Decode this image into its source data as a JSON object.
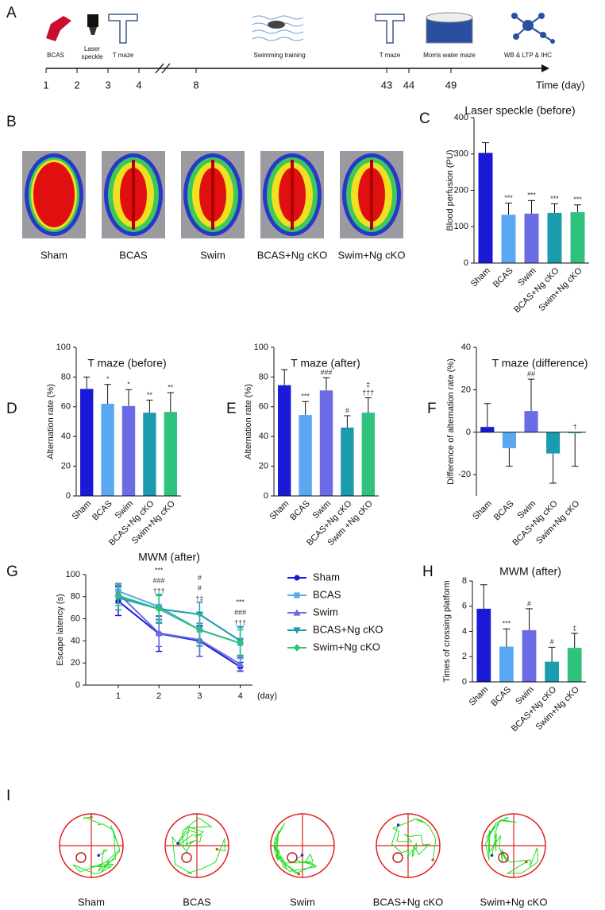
{
  "timeline": {
    "panel": "A",
    "events": [
      {
        "label": "BCAS"
      },
      {
        "label": [
          "Laser",
          "speckle"
        ]
      },
      {
        "label": "T maze"
      },
      {
        "label": "Swimming training"
      },
      {
        "label": "T maze"
      },
      {
        "label": "Morris water maze"
      },
      {
        "label": "WB & LTP & IHC"
      }
    ],
    "days": [
      1,
      2,
      3,
      4,
      8,
      43,
      44,
      49
    ],
    "axis_label": "Time (day)"
  },
  "images": {
    "panel": "B",
    "labels": [
      "Sham",
      "BCAS",
      "Swim",
      "BCAS+Ng cKO",
      "Swim+Ng cKO"
    ]
  },
  "chart_data": [
    {
      "type": "bar",
      "panel": "C",
      "title": "Laser speckle (before)",
      "ylabel": "Blood perfusion (PU)",
      "categories": [
        "Sham",
        "BCAS",
        "Swim",
        "BCAS+Ng cKO",
        "Swim+Ng cKO"
      ],
      "values": [
        303,
        133,
        136,
        138,
        140
      ],
      "errors": [
        28,
        32,
        36,
        25,
        20
      ],
      "colors": [
        "#1a1ad6",
        "#5aa8f2",
        "#6b6be6",
        "#1a9bae",
        "#2fc27c"
      ],
      "annotations": [
        null,
        [
          "***"
        ],
        [
          "***"
        ],
        [
          "***"
        ],
        [
          "***"
        ]
      ],
      "ylim": [
        0,
        400
      ],
      "yticks": [
        0,
        100,
        200,
        300,
        400
      ]
    },
    {
      "type": "bar",
      "panel": "D",
      "title": "T maze (before)",
      "ylabel": "Alternation rate (%)",
      "categories": [
        "Sham",
        "BCAS",
        "Swim",
        "BCAS+Ng cKO",
        "Swim+Ng cKO"
      ],
      "values": [
        72,
        62,
        60.5,
        56,
        56.5
      ],
      "errors": [
        8,
        13,
        11,
        8.5,
        13
      ],
      "colors": [
        "#1a1ad6",
        "#5aa8f2",
        "#6b6be6",
        "#1a9bae",
        "#2fc27c"
      ],
      "annotations": [
        null,
        [
          "*"
        ],
        [
          "*"
        ],
        [
          "**"
        ],
        [
          "**"
        ]
      ],
      "ylim": [
        0,
        100
      ],
      "yticks": [
        0,
        20,
        40,
        60,
        80,
        100
      ]
    },
    {
      "type": "bar",
      "panel": "E",
      "title": "T maze (after)",
      "ylabel": "Alternation rate (%)",
      "categories": [
        "Sham",
        "BCAS",
        "Swim",
        "BCAS+Ng cKO",
        "Swim +Ng cKO"
      ],
      "values": [
        74.5,
        54.5,
        71,
        46,
        56
      ],
      "errors": [
        10.5,
        9,
        8.5,
        8,
        10
      ],
      "colors": [
        "#1a1ad6",
        "#5aa8f2",
        "#6b6be6",
        "#1a9bae",
        "#2fc27c"
      ],
      "annotations": [
        null,
        [
          "***"
        ],
        [
          "###"
        ],
        [
          "#"
        ],
        [
          "‡",
          "†††"
        ]
      ],
      "ylim": [
        0,
        100
      ],
      "yticks": [
        0,
        20,
        40,
        60,
        80,
        100
      ]
    },
    {
      "type": "bar",
      "panel": "F",
      "title": "T maze (difference)",
      "ylabel": "Difference of alternation rate (%)",
      "categories": [
        "Sham",
        "BCAS",
        "Swim",
        "BCAS+Ng cKO",
        "Swim+Ng cKO"
      ],
      "values": [
        2.5,
        -7.5,
        10,
        -10,
        -0.5
      ],
      "errors": [
        11,
        8.5,
        15,
        14,
        15.5
      ],
      "colors": [
        "#1a1ad6",
        "#5aa8f2",
        "#6b6be6",
        "#1a9bae",
        "#2fc27c"
      ],
      "annotations": [
        null,
        null,
        [
          "##"
        ],
        null,
        [
          "†"
        ]
      ],
      "ylim": [
        -30,
        40
      ],
      "yticks": [
        -20,
        0,
        20,
        40
      ]
    },
    {
      "type": "line",
      "panel": "G",
      "title": "MWM (after)",
      "ylabel": "Escape latency (s)",
      "xlabel": "(day)",
      "x": [
        1,
        2,
        3,
        4
      ],
      "xlim": [
        0.2,
        4.3
      ],
      "xticks": [
        1,
        2,
        3,
        4
      ],
      "ylim": [
        0,
        100
      ],
      "yticks": [
        0,
        20,
        40,
        60,
        80,
        100
      ],
      "legend": "right",
      "series": [
        {
          "name": "Sham",
          "color": "#1a1ad6",
          "marker": "circle",
          "values": [
            76,
            46.5,
            40,
            16.5
          ],
          "errors": [
            13,
            16,
            14,
            4
          ]
        },
        {
          "name": "BCAS",
          "color": "#5aa8f2",
          "marker": "square",
          "values": [
            85,
            71,
            50,
            38
          ],
          "errors": [
            6,
            11,
            15,
            14
          ]
        },
        {
          "name": "Swim",
          "color": "#6b6be6",
          "marker": "triangle",
          "values": [
            83,
            47,
            41,
            19
          ],
          "errors": [
            9,
            12,
            15,
            6
          ]
        },
        {
          "name": "BCAS+Ng cKO",
          "color": "#1a9bae",
          "marker": "triangle-down",
          "values": [
            79,
            69,
            64,
            40
          ],
          "errors": [
            11,
            13,
            11,
            13
          ]
        },
        {
          "name": "Swim+Ng cKO",
          "color": "#2fc27c",
          "marker": "diamond",
          "values": [
            81,
            69,
            50,
            38
          ],
          "errors": [
            9,
            12,
            14,
            12
          ]
        }
      ],
      "annotations": [
        null,
        [
          "***",
          "###",
          "†††"
        ],
        [
          "#",
          "#",
          "†‡"
        ],
        [
          "***",
          "###",
          "†††"
        ]
      ]
    },
    {
      "type": "bar",
      "panel": "H",
      "title": "MWM (after)",
      "ylabel": "Times of crossing platform",
      "categories": [
        "Sham",
        "BCAS",
        "Swim",
        "BCAS+Ng cKO",
        "Swim+Ng cKO"
      ],
      "values": [
        5.8,
        2.8,
        4.1,
        1.6,
        2.7
      ],
      "errors": [
        1.9,
        1.4,
        1.7,
        1.15,
        1.15
      ],
      "colors": [
        "#1a1ad6",
        "#5aa8f2",
        "#6b6be6",
        "#1a9bae",
        "#2fc27c"
      ],
      "annotations": [
        null,
        [
          "***"
        ],
        [
          "#"
        ],
        [
          "#"
        ],
        [
          "‡"
        ]
      ],
      "ylim": [
        0,
        8
      ],
      "yticks": [
        0,
        2,
        4,
        6,
        8
      ]
    }
  ],
  "mazes": {
    "panel": "I",
    "labels": [
      "Sham",
      "BCAS",
      "Swim",
      "BCAS+Ng cKO",
      "Swim+Ng cKO"
    ]
  }
}
